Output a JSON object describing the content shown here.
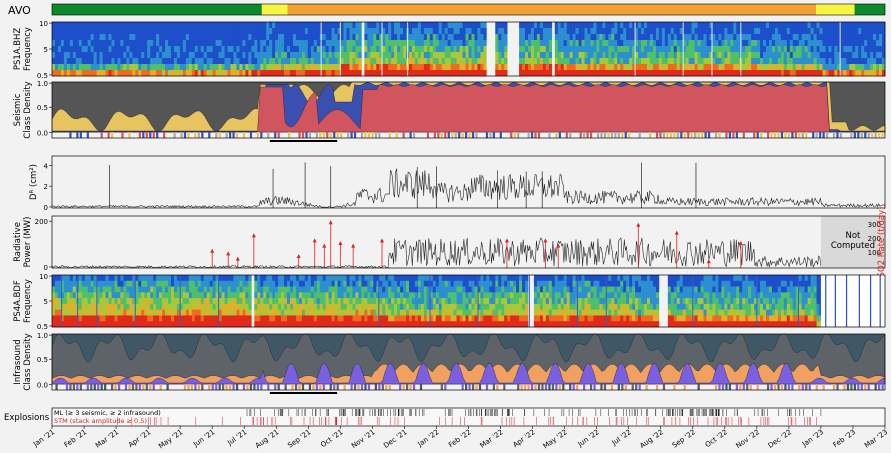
{
  "chart_data": {
    "type": "multi-panel time series",
    "x_ticks": [
      "Jan '21",
      "Feb '21",
      "Mar '21",
      "Apr '21",
      "May '21",
      "Jun '21",
      "Jul '21",
      "Aug '21",
      "Sep '21",
      "Oct '21",
      "Nov '21",
      "Dec '21",
      "Jan '22",
      "Feb '22",
      "Mar '22",
      "Apr '22",
      "May '22",
      "Jun '22",
      "Jul '22",
      "Aug '22",
      "Sep '22",
      "Oct '22",
      "Nov '22",
      "Dec '22",
      "Jan '23",
      "Feb '23",
      "Mar '23"
    ],
    "alert_bar": {
      "label": "AVO",
      "colors": {
        "green": "#0a8a2a",
        "yellow": "#f5f542",
        "orange": "#f5a032"
      },
      "segments": [
        {
          "level": "green",
          "start": "Jan '21",
          "end": "Jul '21"
        },
        {
          "level": "yellow",
          "start": "Jul '21",
          "end": "Jul '21"
        },
        {
          "level": "orange",
          "start": "Aug '21",
          "end": "Dec '22"
        },
        {
          "level": "yellow",
          "start": "Dec '22",
          "end": "Jan '23"
        },
        {
          "level": "green",
          "start": "Jan '23",
          "end": "Mar '23"
        }
      ]
    },
    "panels": [
      {
        "id": "ps1a",
        "ylabel": "PS1A.BHZ\nFrequency",
        "ticks": [
          "10",
          "5",
          "0.5"
        ],
        "type": "spectrogram"
      },
      {
        "id": "seismic",
        "ylabel": "Seismic\nClass Density",
        "ticks": [
          "1.0",
          "0.5",
          "0.0"
        ],
        "type": "area"
      },
      {
        "id": "dr",
        "ylabel": "D_R (cm²)",
        "ticks": [
          "4",
          "2",
          "0"
        ],
        "type": "line"
      },
      {
        "id": "rad",
        "ylabel": "Radiative\nPower (MW)",
        "ticks": [
          "200",
          "0"
        ],
        "right_label": "SO2 Rate (t/day)",
        "right_ticks": [
          "300",
          "200",
          "100"
        ],
        "annotation": "Not\nComputed",
        "type": "line+stem"
      },
      {
        "id": "ps4a",
        "ylabel": "PS4A.BDF\nFrequency",
        "ticks": [
          "10",
          "5",
          "0.5"
        ],
        "type": "spectrogram"
      },
      {
        "id": "infra",
        "ylabel": "Infrasound\nClass Density",
        "ticks": [
          "1.0",
          "0.5",
          "0.0"
        ],
        "type": "area"
      },
      {
        "id": "expl",
        "ylabel": "Explosions",
        "legend": [
          "ML (≥ 3 seismic, ≥ 2 infrasound)",
          "STM (stack amplitude ≥ 0.5)"
        ],
        "type": "events"
      }
    ],
    "seismic_class_colors": {
      "background": "#555555",
      "tremor": "#d0555f",
      "lf": "#3a4fb0",
      "explosion": "#e8c460"
    },
    "infrasound_class_colors": {
      "background": "#5d6368",
      "explosion": "#7a60e0",
      "wind": "#f0a060"
    }
  }
}
